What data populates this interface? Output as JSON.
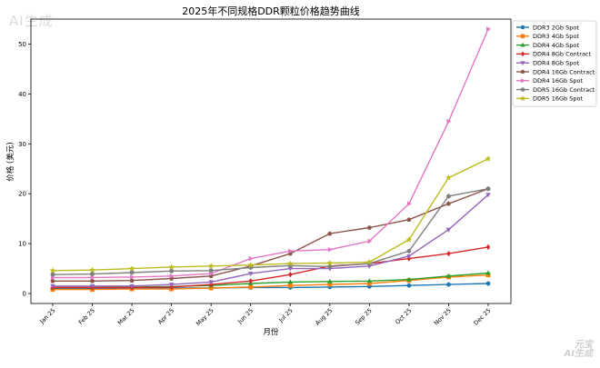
{
  "watermarks": {
    "top_left": "AI生成",
    "bottom_right_1": "元宝",
    "bottom_right_2": "AI生成"
  },
  "chart_data": {
    "type": "line",
    "title": "2025年不同规格DDR颗粒价格趋势曲线",
    "xlabel": "月份",
    "ylabel": "价格 (美元)",
    "ylim": [
      -2,
      55
    ],
    "yticks": [
      0,
      10,
      20,
      30,
      40,
      50
    ],
    "grid": false,
    "legend_position": "top-right",
    "categories": [
      "Jan 25",
      "Feb 25",
      "Mar 25",
      "Apr 25",
      "May 25",
      "Jun 25",
      "Jul 25",
      "Aug 25",
      "Sep 25",
      "Oct 25",
      "Nov 25",
      "Dec 25"
    ],
    "series": [
      {
        "name": "DDR3 2Gb Spot",
        "color": "#1f77b4",
        "marker": "circle",
        "values": [
          1.0,
          1.0,
          1.0,
          1.1,
          1.1,
          1.2,
          1.2,
          1.3,
          1.4,
          1.6,
          1.8,
          2.0
        ]
      },
      {
        "name": "DDR3 4Gb Spot",
        "color": "#ff7f0e",
        "marker": "square",
        "values": [
          0.8,
          0.8,
          0.9,
          0.9,
          1.1,
          1.3,
          1.6,
          1.8,
          2.0,
          2.6,
          3.3,
          3.7
        ]
      },
      {
        "name": "DDR4 4Gb Spot",
        "color": "#2ca02c",
        "marker": "triangle-up",
        "values": [
          1.2,
          1.2,
          1.3,
          1.4,
          1.6,
          2.0,
          2.3,
          2.4,
          2.5,
          2.8,
          3.5,
          4.1
        ]
      },
      {
        "name": "DDR4 8Gb Contract",
        "color": "#d62728",
        "marker": "diamond",
        "values": [
          1.2,
          1.2,
          1.2,
          1.3,
          1.8,
          2.5,
          3.8,
          5.5,
          6.0,
          7.0,
          8.0,
          9.3
        ]
      },
      {
        "name": "DDR4 8Gb Spot",
        "color": "#9467bd",
        "marker": "triangle-down",
        "values": [
          1.5,
          1.5,
          1.5,
          1.8,
          2.3,
          4.0,
          5.0,
          5.0,
          5.5,
          7.5,
          12.8,
          19.8
        ]
      },
      {
        "name": "DDR4 16Gb Contract",
        "color": "#8c564b",
        "marker": "pentagon",
        "values": [
          2.5,
          2.5,
          2.6,
          3.0,
          3.5,
          5.5,
          8.0,
          12.0,
          13.2,
          14.8,
          18.0,
          21.0
        ]
      },
      {
        "name": "DDR4 16Gb Spot",
        "color": "#e377c2",
        "marker": "triangle-right",
        "values": [
          3.2,
          3.2,
          3.3,
          3.5,
          4.0,
          7.0,
          8.5,
          8.8,
          10.5,
          18.0,
          34.5,
          53.0
        ]
      },
      {
        "name": "DDR5 16Gb Contract",
        "color": "#7f7f7f",
        "marker": "hexagon",
        "values": [
          3.8,
          3.9,
          4.2,
          4.5,
          4.6,
          5.2,
          5.6,
          5.4,
          6.0,
          8.5,
          19.5,
          21.0
        ]
      },
      {
        "name": "DDR5 16Gb Spot",
        "color": "#bcbd22",
        "marker": "star",
        "values": [
          4.6,
          4.7,
          5.0,
          5.3,
          5.5,
          5.7,
          6.0,
          6.1,
          6.3,
          10.8,
          23.2,
          27.0
        ]
      }
    ]
  }
}
